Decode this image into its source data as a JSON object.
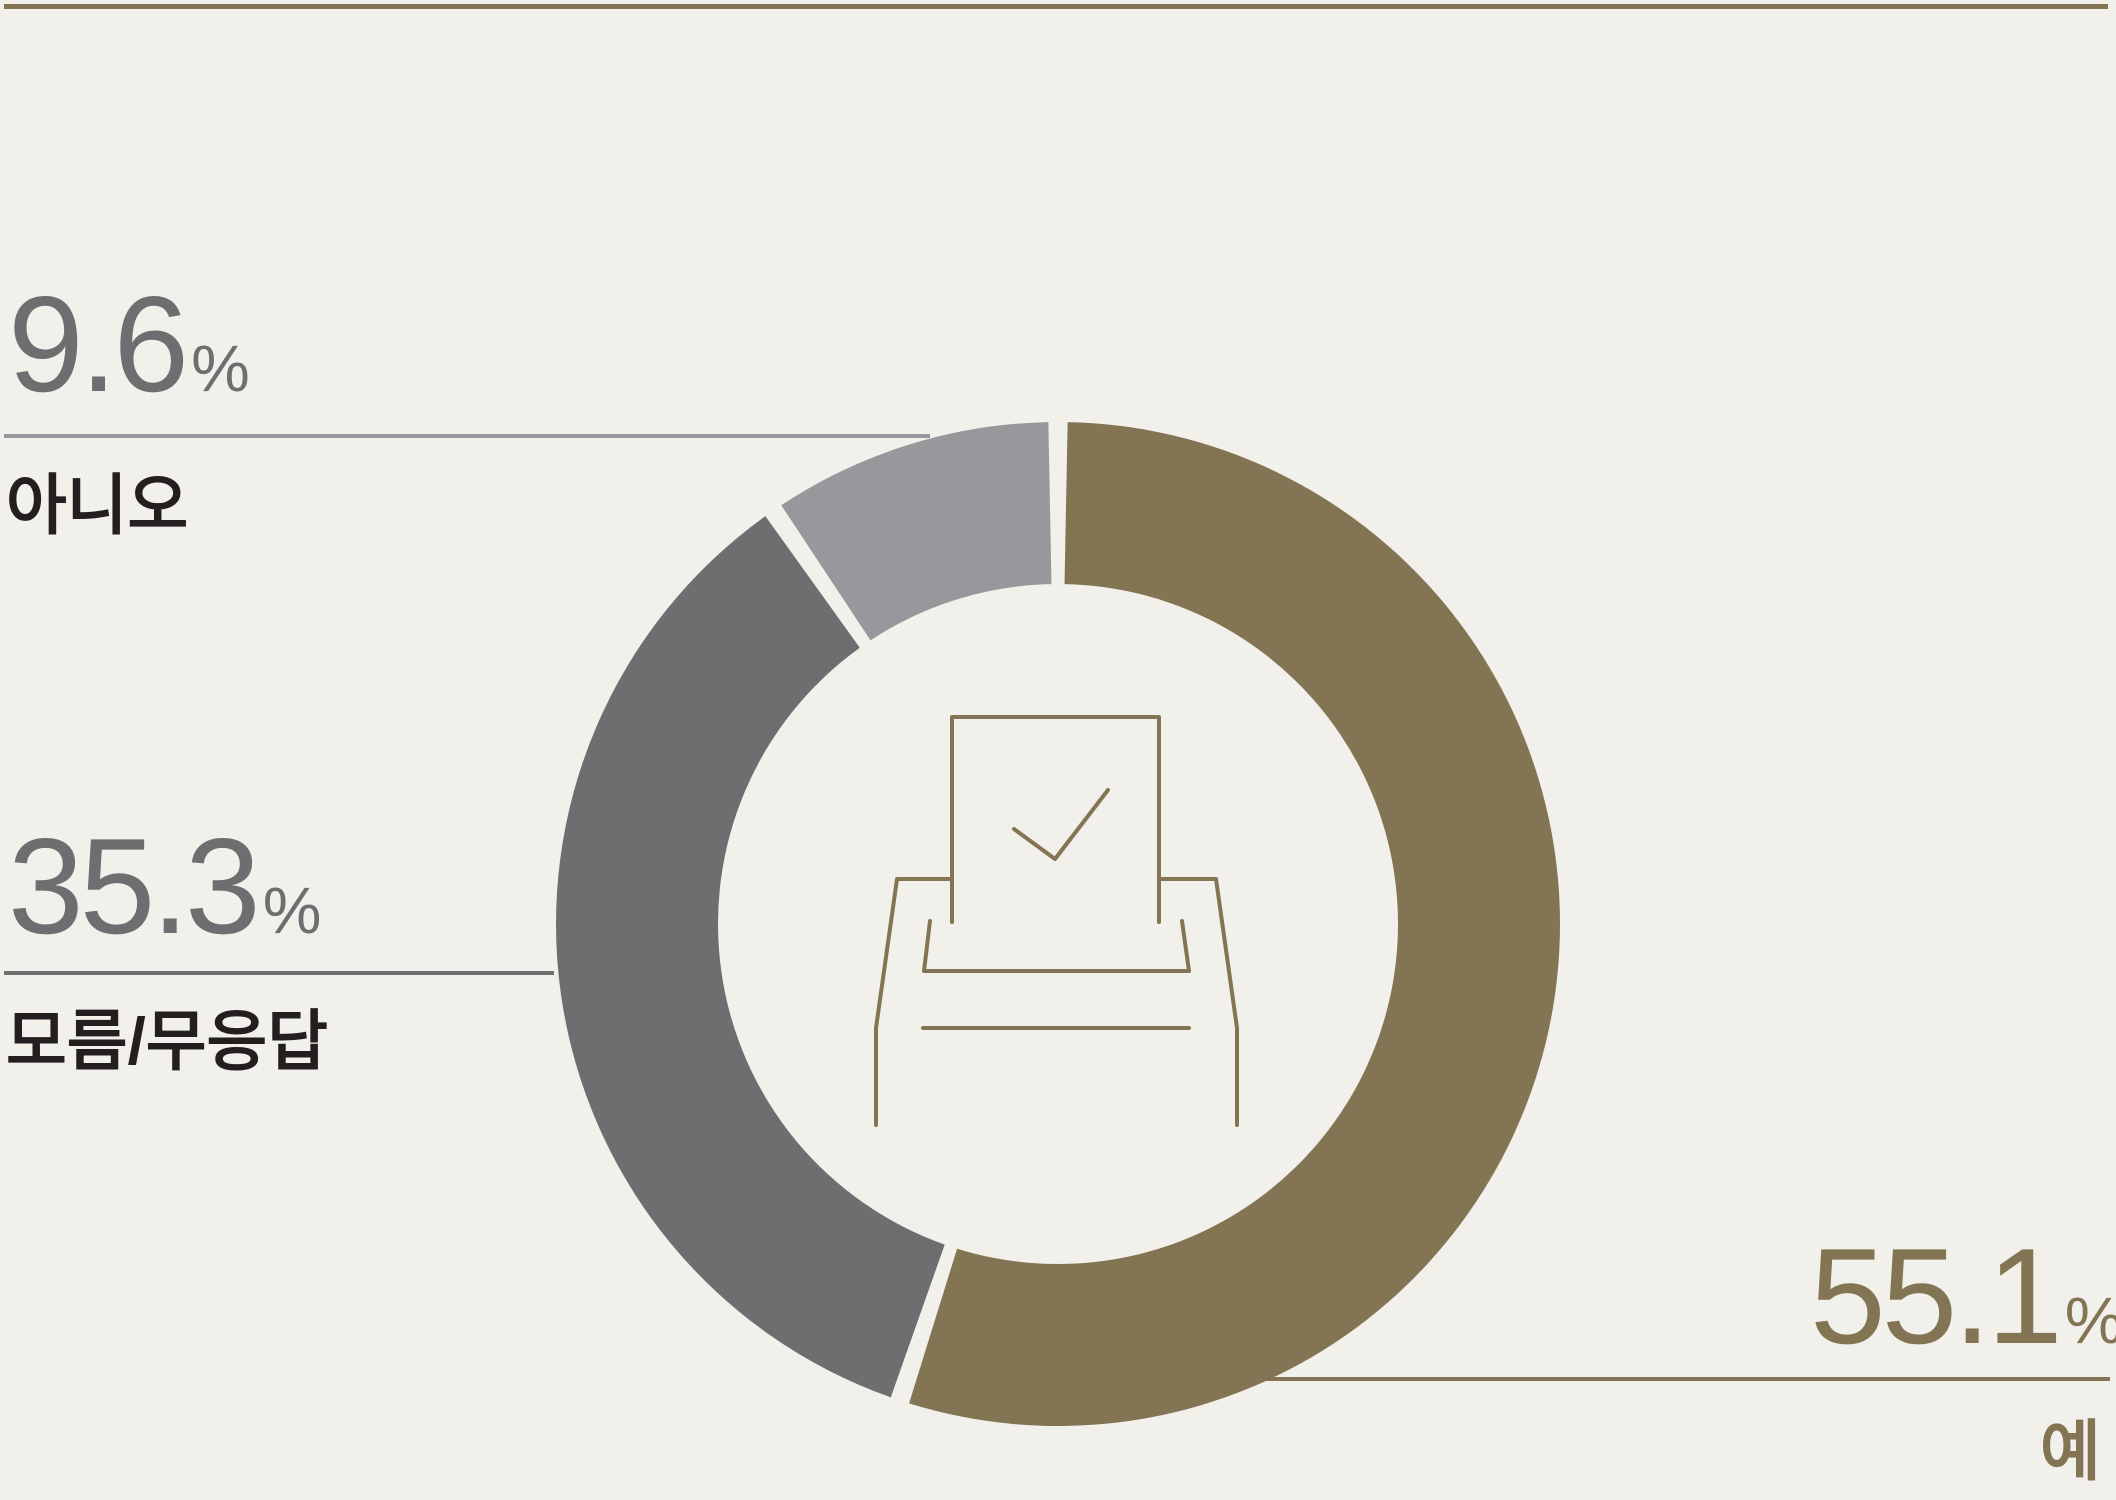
{
  "chart_data": {
    "type": "pie",
    "variant": "donut",
    "categories": [
      "예",
      "모름/무응답",
      "아니오"
    ],
    "values": [
      55.1,
      35.3,
      9.6
    ],
    "unit": "%",
    "colors": [
      "#837553",
      "#6d6e70",
      "#97989b"
    ],
    "center_icon": "ballot-box-checkmark-icon"
  },
  "labels": {
    "no": {
      "value": "9.6",
      "unit": "%",
      "label": "아니오"
    },
    "unknown": {
      "value": "35.3",
      "unit": "%",
      "label": "모름/무응답"
    },
    "yes": {
      "value": "55.1",
      "unit": "%",
      "label": "예"
    }
  },
  "colors": {
    "background": "#f1f0eb",
    "accent": "#837553",
    "label_dark": "#231f20",
    "value_gray": "#6d6e70"
  }
}
